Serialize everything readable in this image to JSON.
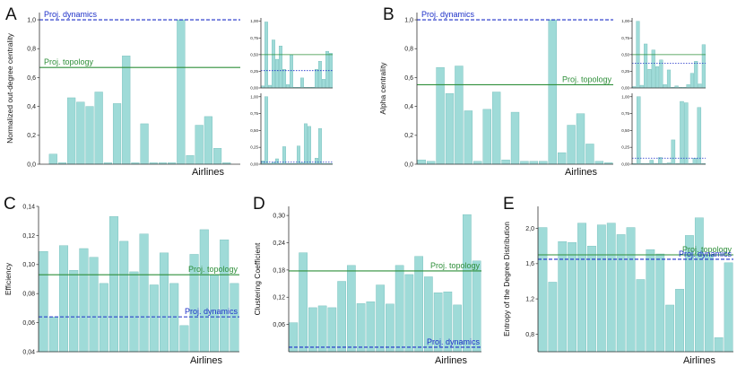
{
  "figure": {
    "bar_color": "#9fdbd8",
    "bar_stroke": "#70bcb8",
    "topology_color": "#2f8f3a",
    "dynamics_color": "#1c2fc8"
  },
  "chart_data": [
    {
      "id": "A",
      "panel_label": "A",
      "type": "bar",
      "ylabel": "Normalized out-degree centrality",
      "xlabel": "Airlines",
      "ylim": [
        0,
        1.05
      ],
      "yticks": [
        0.0,
        0.2,
        0.4,
        0.6,
        0.8,
        1.0
      ],
      "ytick_labels": [
        "0,0",
        "0,2",
        "0,4",
        "0,6",
        "0,8",
        "1,0"
      ],
      "values": [
        0.0,
        0.07,
        0.01,
        0.46,
        0.43,
        0.4,
        0.5,
        0.01,
        0.42,
        0.75,
        0.01,
        0.28,
        0.01,
        0.01,
        0.01,
        1.0,
        0.06,
        0.27,
        0.33,
        0.11,
        0.01,
        0.0
      ],
      "reference_lines": [
        {
          "name": "Proj. dynamics",
          "value": 1.0,
          "style": "dashed",
          "label_pos": "top-left"
        },
        {
          "name": "Proj. topology",
          "value": 0.67,
          "style": "solid",
          "label_pos": "left"
        }
      ]
    },
    {
      "id": "A_inset_top",
      "type": "bar",
      "ylim": [
        0,
        1.05
      ],
      "yticks": [
        0.0,
        0.25,
        0.5,
        0.75,
        1.0
      ],
      "ytick_labels": [
        "0,00",
        "0,25",
        "0,50",
        "0,75",
        "1,00"
      ],
      "values": [
        0.03,
        0.99,
        0.04,
        0.72,
        0.43,
        0.63,
        0.28,
        0.05,
        0.5,
        0.01,
        0.01,
        0.15,
        0.01,
        0.01,
        0.01,
        0.28,
        0.4,
        0.13,
        0.55,
        0.52
      ],
      "reference_lines": [
        {
          "name": "topology",
          "value": 0.5,
          "style": "solid"
        },
        {
          "name": "dynamics",
          "value": 0.26,
          "style": "dotted"
        }
      ]
    },
    {
      "id": "A_inset_bottom",
      "type": "bar",
      "ylim": [
        0,
        1.05
      ],
      "yticks": [
        0.0,
        0.25,
        0.5,
        0.75,
        1.0
      ],
      "ytick_labels": [
        "0,00",
        "0,25",
        "0,50",
        "0,75",
        "1,00"
      ],
      "values": [
        0.05,
        1.0,
        0.01,
        0.03,
        0.08,
        0.01,
        0.26,
        0.01,
        0.01,
        0.01,
        0.27,
        0.02,
        0.6,
        0.56,
        0.01,
        0.09,
        0.53,
        0.01,
        0.01,
        0.01
      ],
      "reference_lines": [
        {
          "name": "dynamics",
          "value": 0.03,
          "style": "dotted"
        }
      ]
    },
    {
      "id": "B",
      "panel_label": "B",
      "type": "bar",
      "ylabel": "Alpha centrality",
      "xlabel": "Airlines",
      "ylim": [
        0,
        1.05
      ],
      "yticks": [
        0.0,
        0.2,
        0.4,
        0.6,
        0.8,
        1.0
      ],
      "ytick_labels": [
        "0,0",
        "0,2",
        "0,4",
        "0,6",
        "0,8",
        "1,0"
      ],
      "values": [
        0.03,
        0.02,
        0.67,
        0.49,
        0.68,
        0.37,
        0.02,
        0.38,
        0.5,
        0.03,
        0.36,
        0.02,
        0.02,
        0.02,
        1.0,
        0.08,
        0.27,
        0.35,
        0.14,
        0.02,
        0.01
      ],
      "reference_lines": [
        {
          "name": "Proj. dynamics",
          "value": 1.0,
          "style": "dashed",
          "label_pos": "top-left"
        },
        {
          "name": "Proj. topology",
          "value": 0.55,
          "style": "solid",
          "label_pos": "right"
        }
      ]
    },
    {
      "id": "B_inset_top",
      "type": "bar",
      "ylim": [
        0,
        1.05
      ],
      "yticks": [
        0.0,
        0.25,
        0.5,
        0.75,
        1.0
      ],
      "ytick_labels": [
        "0,00",
        "0,25",
        "0,50",
        "0,75",
        "1,00"
      ],
      "values": [
        0.02,
        1.0,
        0.04,
        0.66,
        0.28,
        0.57,
        0.32,
        0.42,
        0.05,
        0.27,
        0.01,
        0.03,
        0.01,
        0.01,
        0.05,
        0.22,
        0.4,
        0.06,
        0.65
      ],
      "reference_lines": [
        {
          "name": "topology",
          "value": 0.5,
          "style": "solid"
        },
        {
          "name": "dynamics",
          "value": 0.37,
          "style": "dotted"
        }
      ]
    },
    {
      "id": "B_inset_bottom",
      "type": "bar",
      "ylim": [
        0,
        1.05
      ],
      "yticks": [
        0.0,
        0.25,
        0.5,
        0.75,
        1.0
      ],
      "ytick_labels": [
        "0,00",
        "0,25",
        "0,50",
        "0,75",
        "1,00"
      ],
      "values": [
        0.01,
        1.0,
        0.01,
        0.01,
        0.06,
        0.01,
        0.1,
        0.01,
        0.02,
        0.36,
        0.01,
        0.93,
        0.91,
        0.01,
        0.09,
        0.84,
        0.01
      ],
      "reference_lines": [
        {
          "name": "dynamics",
          "value": 0.09,
          "style": "dotted"
        }
      ]
    },
    {
      "id": "C",
      "panel_label": "C",
      "type": "bar",
      "ylabel": "Efficiency",
      "xlabel": "Airlines",
      "ylim": [
        0.04,
        0.14
      ],
      "yticks": [
        0.04,
        0.06,
        0.08,
        0.1,
        0.12,
        0.14
      ],
      "ytick_labels": [
        "0,04",
        "0,06",
        "0,08",
        "0,10",
        "0,12",
        "0,14"
      ],
      "values": [
        0.109,
        0.064,
        0.113,
        0.096,
        0.111,
        0.105,
        0.087,
        0.133,
        0.116,
        0.095,
        0.121,
        0.086,
        0.108,
        0.087,
        0.058,
        0.107,
        0.124,
        0.093,
        0.117,
        0.087
      ],
      "reference_lines": [
        {
          "name": "Proj. topology",
          "value": 0.093,
          "style": "solid",
          "label_pos": "right"
        },
        {
          "name": "Proj. dynamics",
          "value": 0.064,
          "style": "dashed",
          "label_pos": "right"
        }
      ]
    },
    {
      "id": "D",
      "panel_label": "D",
      "type": "bar",
      "ylabel": "Clustering Coefficient",
      "xlabel": "Airlines",
      "ylim": [
        0.0,
        0.32
      ],
      "yticks": [
        0.06,
        0.12,
        0.18,
        0.24,
        0.3
      ],
      "ytick_labels": [
        "0,06",
        "0,12",
        "0,18",
        "0,24",
        "0,30"
      ],
      "values": [
        0.064,
        0.218,
        0.097,
        0.101,
        0.097,
        0.155,
        0.19,
        0.106,
        0.11,
        0.147,
        0.105,
        0.19,
        0.17,
        0.21,
        0.165,
        0.13,
        0.132,
        0.103,
        0.302,
        0.2
      ],
      "reference_lines": [
        {
          "name": "Proj. topology",
          "value": 0.178,
          "style": "solid",
          "label_pos": "right"
        },
        {
          "name": "Proj. dynamics",
          "value": 0.01,
          "style": "dashed",
          "label_pos": "right"
        }
      ]
    },
    {
      "id": "E",
      "panel_label": "E",
      "type": "bar",
      "ylabel": "Entropy of the Degree Distribution",
      "xlabel": "Airlines",
      "ylim": [
        0.6,
        2.25
      ],
      "yticks": [
        0.8,
        1.2,
        1.6,
        2.0
      ],
      "ytick_labels": [
        "0,8",
        "1,2",
        "1,6",
        "2,0"
      ],
      "values": [
        2.01,
        1.39,
        1.85,
        1.84,
        2.06,
        1.8,
        2.04,
        2.06,
        1.93,
        2.01,
        1.42,
        1.76,
        1.71,
        1.13,
        1.31,
        1.92,
        2.12,
        1.7,
        0.76,
        1.61
      ],
      "reference_lines": [
        {
          "name": "Proj. topology",
          "value": 1.7,
          "style": "solid",
          "label_pos": "right"
        },
        {
          "name": "Proj. dynamics",
          "value": 1.65,
          "style": "dashed",
          "label_pos": "right"
        }
      ]
    }
  ]
}
